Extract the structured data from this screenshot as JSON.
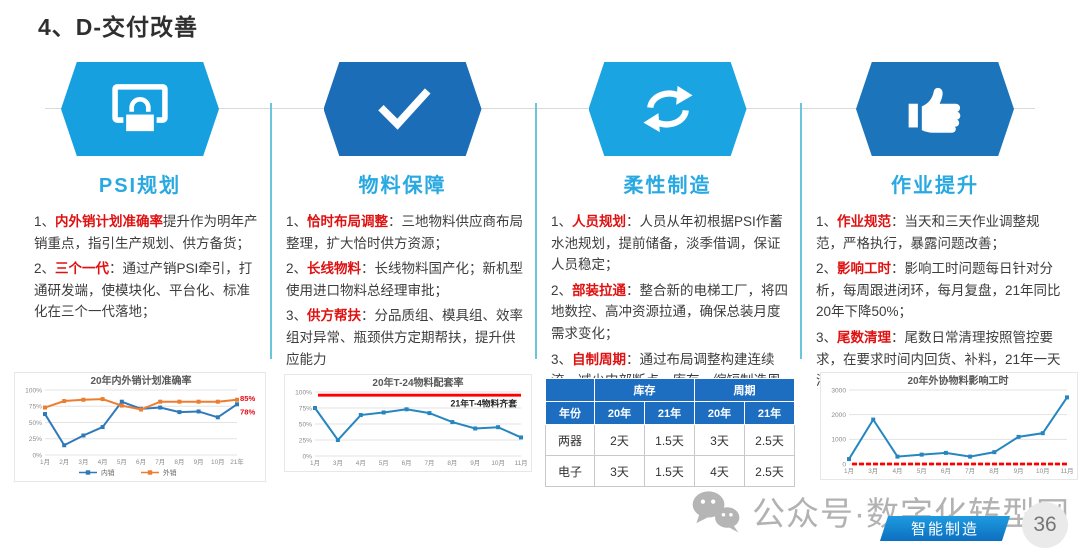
{
  "page": {
    "title": "4、D-交付改善",
    "page_number": "36",
    "watermark": "公众号·数字化转型网",
    "banner": "智能制造"
  },
  "colors": {
    "accent_cyan": "#29a9e1",
    "hex_light_blue": "#17a0e0",
    "hex_dark_blue": "#1a6db6",
    "keyword_red": "#df1111",
    "table_header_blue": "#1d6ec1",
    "series_blue": "#2e79ba",
    "series_orange": "#ed7d31",
    "refline_red": "#ff0000"
  },
  "columns": [
    {
      "header": "PSI规划",
      "icon": "monitor-lock",
      "items": [
        {
          "num": "1、",
          "keyword": "内外销计划准确率",
          "rest": "提升作为明年产销重点，指引生产规划、供方备货；"
        },
        {
          "num": "2、",
          "keyword": "三个一代",
          "rest": "：通过产销PSI牵引，打通研发端，使模块化、平台化、标准化在三个一代落地；"
        }
      ]
    },
    {
      "header": "物料保障",
      "icon": "checkmark",
      "items": [
        {
          "num": "1、",
          "keyword": "恰时布局调整",
          "rest": "：三地物料供应商布局整理，扩大恰时供方资源；"
        },
        {
          "num": "2、",
          "keyword": "长线物料",
          "rest": "：长线物料国产化；新机型使用进口物料总经理审批；"
        },
        {
          "num": "3、",
          "keyword": "供方帮扶",
          "rest": "：分品质组、模具组、效率组对异常、瓶颈供方定期帮扶，提升供应能力"
        }
      ]
    },
    {
      "header": "柔性制造",
      "icon": "refresh-arrows",
      "items": [
        {
          "num": "1、",
          "keyword": "人员规划",
          "rest": "：人员从年初根据PSI作蓄水池规划，提前储备，淡季借调，保证人员稳定；"
        },
        {
          "num": "2、",
          "keyword": "部装拉通",
          "rest": "：整合新的电梯工厂，将四地数控、高冲资源拉通，确保总装月度需求变化；"
        },
        {
          "num": "3、",
          "keyword": "自制周期",
          "rest": "：通过布局调整构建连续流，减少内部断点、库存，缩短制造周期；"
        }
      ]
    },
    {
      "header": "作业提升",
      "icon": "thumbs-up",
      "items": [
        {
          "num": "1、",
          "keyword": "作业规范",
          "rest": "：当天和三天作业调整规范，严格执行，暴露问题改善；"
        },
        {
          "num": "2、",
          "keyword": "影响工时",
          "rest": "：影响工时问题每日针对分析，每周跟进闭环，每月复盘，21年同比20年下降50%；"
        },
        {
          "num": "3、",
          "keyword": "尾数清理",
          "rest": "：尾数日常清理按照管控要求，在要求时间内回货、补料，21年一天清理率目标90%；"
        }
      ]
    }
  ],
  "table": {
    "groups": [
      "库存",
      "周期"
    ],
    "cols": [
      "年份",
      "20年",
      "21年",
      "20年",
      "21年"
    ],
    "rows": [
      [
        "两器",
        "2天",
        "1.5天",
        "3天",
        "2.5天"
      ],
      [
        "电子",
        "3天",
        "1.5天",
        "4天",
        "2.5天"
      ]
    ]
  },
  "chart_data": [
    {
      "type": "line",
      "title": "20年内外销计划准确率",
      "x": [
        "1月",
        "2月",
        "3月",
        "4月",
        "5月",
        "6月",
        "7月",
        "8月",
        "9月",
        "10月",
        "21年"
      ],
      "ylim": [
        0,
        100
      ],
      "ytick_values": [
        0,
        25,
        50,
        75,
        100
      ],
      "yticks": [
        "0%",
        "25%",
        "50%",
        "75%",
        "100%"
      ],
      "grid": true,
      "legend_position": "bottom",
      "series": [
        {
          "name": "内销",
          "color": "#2e79ba",
          "values": [
            63,
            15,
            30,
            43,
            82,
            71,
            73,
            66,
            67,
            58,
            78
          ]
        },
        {
          "name": "外销",
          "color": "#ed7d31",
          "values": [
            73,
            83,
            85,
            86,
            76,
            70,
            82,
            82,
            82,
            82,
            85
          ]
        }
      ],
      "annotations": [
        {
          "text": "85%",
          "value": 85,
          "color": "#e30613"
        },
        {
          "text": "78%",
          "value": 78,
          "color": "#e30613"
        }
      ]
    },
    {
      "type": "line",
      "title": "20年T-24物料配套率",
      "x": [
        "1月",
        "3月",
        "4月",
        "5月",
        "6月",
        "7月",
        "8月",
        "9月",
        "10月",
        "11月"
      ],
      "ylim": [
        0,
        100
      ],
      "ytick_values": [
        0,
        25,
        50,
        75,
        100
      ],
      "yticks": [
        "0%",
        "25%",
        "50%",
        "75%",
        "100%"
      ],
      "grid": true,
      "series": [
        {
          "name": "配套率",
          "color": "#2586c0",
          "values": [
            75,
            25,
            64,
            68,
            73,
            67,
            53,
            43,
            45,
            29
          ]
        }
      ],
      "refline": {
        "value": 95,
        "color": "#ff0000",
        "label": "21年T-4物料齐套"
      }
    },
    {
      "type": "line",
      "title": "20年外协物料影响工时",
      "x": [
        "1月",
        "3月",
        "4月",
        "5月",
        "6月",
        "7月",
        "8月",
        "9月",
        "10月",
        "11月"
      ],
      "ylim": [
        0,
        3000
      ],
      "ytick_values": [
        0,
        1000,
        2000,
        3000
      ],
      "yticks": [
        "0",
        "1000",
        "2000",
        "3000"
      ],
      "grid": true,
      "series": [
        {
          "name": "影响工时",
          "color": "#2586c0",
          "values": [
            200,
            1800,
            300,
            380,
            450,
            300,
            480,
            1100,
            1250,
            2700
          ]
        }
      ],
      "refline": {
        "value": 0,
        "color": "#ff0000",
        "label": ""
      }
    }
  ]
}
